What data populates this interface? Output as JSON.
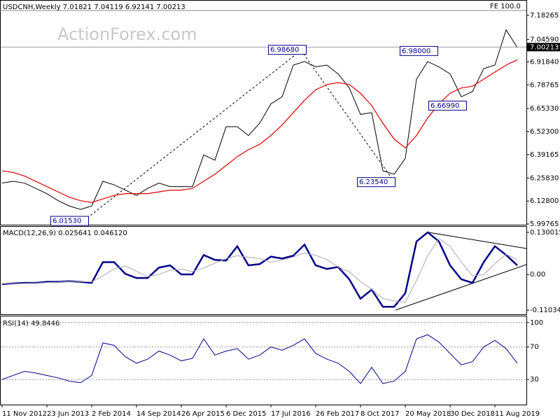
{
  "chart_data": [
    {
      "type": "line",
      "title": "USDCNH,Weekly  7.01821 7.04119 6.92141 7.00213",
      "watermark": "ActionForex.com",
      "fe_label": "FE 100.0",
      "ylim": [
        5.99765,
        7.21
      ],
      "yticks": [
        7.18265,
        {
          "value": 7.0459,
          "label": "7.04590"
        },
        {
          "value": 6.9184,
          "label": "6.91840"
        },
        6.78765,
        {
          "value": 6.6533,
          "label": "6.65330"
        },
        {
          "value": 6.523,
          "label": "6.52300"
        },
        6.39165,
        {
          "value": 6.2583,
          "label": "6.25830"
        },
        {
          "value": 6.128,
          "label": "6.12800"
        },
        5.99765
      ],
      "last": 7.00213,
      "annotations": [
        {
          "value": 6.9868,
          "label": "6.98680"
        },
        {
          "value": 6.98,
          "label": "6.98000"
        },
        {
          "value": 6.6699,
          "label": "6.66990"
        },
        {
          "value": 6.2354,
          "label": "6.23540"
        },
        {
          "value": 6.0153,
          "label": "6.01530"
        }
      ],
      "series": [
        {
          "color": "#000000",
          "values": [
            6.23,
            6.24,
            6.23,
            6.2,
            6.17,
            6.13,
            6.1,
            6.08,
            6.1,
            6.24,
            6.22,
            6.19,
            6.16,
            6.2,
            6.23,
            6.21,
            6.21,
            6.21,
            6.39,
            6.36,
            6.55,
            6.55,
            6.5,
            6.57,
            6.68,
            6.72,
            6.9,
            6.92,
            6.89,
            6.9,
            6.85,
            6.77,
            6.62,
            6.63,
            6.3,
            6.28,
            6.37,
            6.82,
            6.92,
            6.89,
            6.85,
            6.72,
            6.75,
            6.88,
            6.9,
            7.1,
            7.0
          ]
        },
        {
          "color": "#e00000",
          "values": [
            6.3,
            6.29,
            6.27,
            6.24,
            6.21,
            6.18,
            6.15,
            6.13,
            6.12,
            6.14,
            6.16,
            6.17,
            6.17,
            6.17,
            6.18,
            6.19,
            6.19,
            6.2,
            6.24,
            6.28,
            6.33,
            6.38,
            6.42,
            6.45,
            6.5,
            6.56,
            6.63,
            6.7,
            6.76,
            6.79,
            6.8,
            6.79,
            6.74,
            6.67,
            6.57,
            6.48,
            6.43,
            6.5,
            6.6,
            6.68,
            6.74,
            6.77,
            6.78,
            6.82,
            6.86,
            6.9,
            6.93
          ]
        }
      ]
    },
    {
      "type": "line",
      "title": "MACD(12,26,9) 0.025641 0.046120",
      "ylim": [
        -0.121,
        0.145
      ],
      "yticks": [
        0.130015,
        {
          "value": 0,
          "label": "0.00"
        },
        -0.110346
      ],
      "series": [
        {
          "color": "#00008b",
          "values": [
            -0.03,
            -0.028,
            -0.026,
            -0.026,
            -0.023,
            -0.023,
            -0.021,
            -0.023,
            -0.026,
            0.038,
            0.038,
            0.002,
            -0.011,
            -0.011,
            0.021,
            0.028,
            0,
            0,
            0.06,
            0.045,
            0.043,
            0.087,
            0.028,
            0.032,
            0.055,
            0.049,
            0.058,
            0.092,
            0.028,
            0.017,
            0.023,
            -0.015,
            -0.075,
            -0.047,
            -0.1,
            -0.1,
            -0.058,
            0.102,
            0.13,
            0.102,
            0.028,
            -0.015,
            -0.026,
            0.038,
            0.087,
            0.06,
            0.028
          ]
        },
        {
          "color": "#a9a9a9",
          "values": [
            -0.028,
            -0.029,
            -0.028,
            -0.027,
            -0.025,
            -0.024,
            -0.022,
            -0.022,
            -0.023,
            -0.004,
            0.017,
            0.026,
            0.01,
            -0.007,
            0,
            0.013,
            0.016,
            0.009,
            0.02,
            0.035,
            0.049,
            0.058,
            0.053,
            0.049,
            0.038,
            0.045,
            0.054,
            0.066,
            0.059,
            0.046,
            0.023,
            0.008,
            -0.022,
            -0.046,
            -0.074,
            -0.082,
            -0.086,
            -0.019,
            0.058,
            0.111,
            0.087,
            0.038,
            -0.004,
            -0.001,
            0.033,
            0.062,
            0.046
          ]
        }
      ]
    },
    {
      "type": "line",
      "title": "RSI(14) 49.8446",
      "ylim": [
        0,
        105
      ],
      "yticks": [
        100,
        70,
        30
      ],
      "grid": true,
      "categories": [
        "11 Nov 2012",
        null,
        null,
        null,
        "23 Jun 2013",
        null,
        null,
        null,
        "2 Feb 2014",
        null,
        null,
        null,
        "14 Sep 2014",
        null,
        null,
        null,
        "26 Apr 2015",
        null,
        null,
        null,
        "6 Dec 2015",
        null,
        null,
        null,
        "17 Jul 2016",
        null,
        null,
        null,
        "26 Feb 2017",
        null,
        null,
        null,
        "8 Oct 2017",
        null,
        null,
        null,
        "20 May 2018",
        null,
        null,
        null,
        "30 Dec 2018",
        null,
        null,
        null,
        "11 Aug 2019",
        null,
        null
      ],
      "series": [
        {
          "color": "#00008b",
          "values": [
            30,
            35,
            40,
            38,
            35,
            32,
            28,
            26,
            35,
            75,
            72,
            58,
            50,
            55,
            65,
            60,
            53,
            56,
            80,
            60,
            65,
            68,
            55,
            60,
            70,
            66,
            72,
            80,
            62,
            55,
            50,
            40,
            25,
            45,
            25,
            28,
            40,
            80,
            85,
            76,
            62,
            48,
            52,
            70,
            78,
            68,
            50
          ]
        }
      ]
    }
  ]
}
